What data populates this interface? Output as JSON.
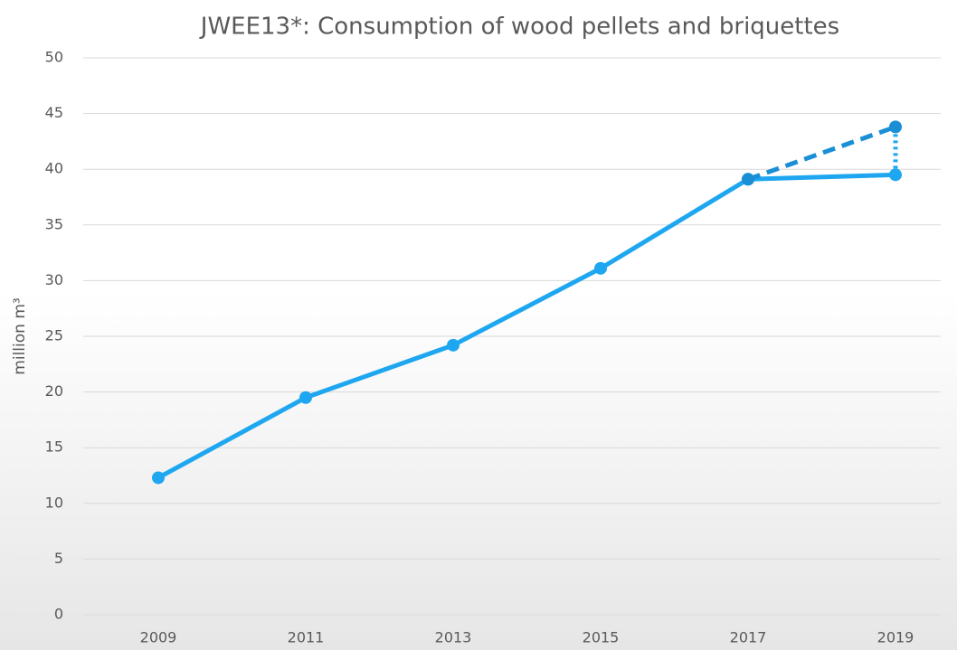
{
  "chart_data": {
    "type": "line",
    "title": "JWEE13*: Consumption of wood pellets and briquettes",
    "y_label": "million m³",
    "categories": [
      "2009",
      "2011",
      "2013",
      "2015",
      "2017",
      "2019"
    ],
    "series": [
      {
        "color": "#1ea7f0",
        "style": "solid",
        "values": [
          12.3,
          19.5,
          24.2,
          31.1,
          39.1,
          39.5
        ]
      },
      {
        "color": "#1a8fd6",
        "style": "dashed",
        "values": [
          null,
          null,
          null,
          null,
          39.1,
          43.8
        ]
      }
    ],
    "ylim": [
      0,
      50
    ],
    "yticks": [
      0,
      5,
      10,
      15,
      20,
      25,
      30,
      35,
      40,
      45,
      50
    ],
    "grid": true
  }
}
